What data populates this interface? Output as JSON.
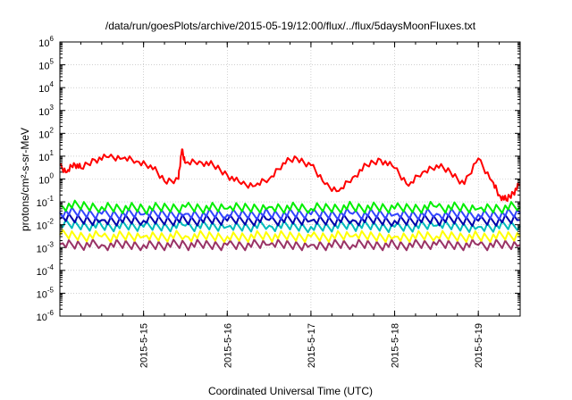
{
  "chart_data": {
    "type": "line",
    "title": "/data/run/goesPlots/archive/2015-05-19/12:00/flux/../flux/5daysMoonFluxes.txt",
    "xlabel": "Coordinated Universal Time (UTC)",
    "ylabel": "protons/cm²-s-sr-MeV",
    "x_axis": {
      "start": "2015-05-14T00:00",
      "end": "2015-05-19T12:00",
      "unit": "day"
    },
    "y_scale": "log",
    "ylim": [
      1e-06,
      1000000.0
    ],
    "grid": true,
    "legend": "none",
    "x_ticks": [
      "2015-5-15",
      "2015-5-16",
      "2015-5-17",
      "2015-5-18",
      "2015-5-19"
    ],
    "y_ticks": [
      {
        "base": "10",
        "exp": "-6",
        "value": 1e-06
      },
      {
        "base": "10",
        "exp": "-5",
        "value": 1e-05
      },
      {
        "base": "10",
        "exp": "-4",
        "value": 0.0001
      },
      {
        "base": "10",
        "exp": "-3",
        "value": 0.001
      },
      {
        "base": "10",
        "exp": "-2",
        "value": 0.01
      },
      {
        "base": "10",
        "exp": "-1",
        "value": 0.1
      },
      {
        "base": "10",
        "exp": "0",
        "value": 1.0
      },
      {
        "base": "10",
        "exp": "1",
        "value": 10.0
      },
      {
        "base": "10",
        "exp": "2",
        "value": 100.0
      },
      {
        "base": "10",
        "exp": "3",
        "value": 1000.0
      },
      {
        "base": "10",
        "exp": "4",
        "value": 10000.0
      },
      {
        "base": "10",
        "exp": "5",
        "value": 100000.0
      },
      {
        "base": "10",
        "exp": "6",
        "value": 1000000.0
      }
    ],
    "series": [
      {
        "color": "#ff0000",
        "x": [
          "2015-05-14T00:00",
          "2015-05-14T02:00",
          "2015-05-14T04:00",
          "2015-05-14T06:00",
          "2015-05-14T10:00",
          "2015-05-14T14:00",
          "2015-05-14T18:00",
          "2015-05-14T22:00",
          "2015-05-15T02:00",
          "2015-05-15T06:00",
          "2015-05-15T10:00",
          "2015-05-15T11:00",
          "2015-05-15T12:00",
          "2015-05-15T16:00",
          "2015-05-15T20:00",
          "2015-05-16T00:00",
          "2015-05-16T04:00",
          "2015-05-16T08:00",
          "2015-05-16T12:00",
          "2015-05-16T16:00",
          "2015-05-16T20:00",
          "2015-05-17T00:00",
          "2015-05-17T04:00",
          "2015-05-17T08:00",
          "2015-05-17T12:00",
          "2015-05-17T16:00",
          "2015-05-17T20:00",
          "2015-05-18T00:00",
          "2015-05-18T04:00",
          "2015-05-18T08:00",
          "2015-05-18T12:00",
          "2015-05-18T16:00",
          "2015-05-18T20:00",
          "2015-05-19T00:00",
          "2015-05-19T04:00",
          "2015-05-19T06:00",
          "2015-05-19T08:00",
          "2015-05-19T10:00",
          "2015-05-19T12:00"
        ],
        "values": [
          4,
          2,
          5,
          3,
          7,
          9,
          8,
          6,
          4,
          0.8,
          1,
          20,
          5,
          6,
          4,
          1.5,
          0.6,
          0.5,
          1,
          5,
          8,
          4,
          0.6,
          0.3,
          1.2,
          4,
          7,
          3,
          0.5,
          2,
          4,
          2,
          0.6,
          8,
          0.8,
          0.2,
          0.12,
          0.25,
          0.6
        ]
      },
      {
        "color": "#00ee00",
        "x": [
          "2015-05-14T00:00",
          "2015-05-14T12:00",
          "2015-05-15T00:00",
          "2015-05-15T12:00",
          "2015-05-16T00:00",
          "2015-05-16T12:00",
          "2015-05-17T00:00",
          "2015-05-17T12:00",
          "2015-05-18T00:00",
          "2015-05-18T12:00",
          "2015-05-19T00:00",
          "2015-05-19T12:00"
        ],
        "values": [
          0.07,
          0.06,
          0.05,
          0.06,
          0.05,
          0.06,
          0.05,
          0.06,
          0.05,
          0.06,
          0.05,
          0.06
        ]
      },
      {
        "color": "#3344ff",
        "x": [
          "2015-05-14T00:00",
          "2015-05-14T12:00",
          "2015-05-15T00:00",
          "2015-05-15T12:00",
          "2015-05-16T00:00",
          "2015-05-16T12:00",
          "2015-05-17T00:00",
          "2015-05-17T12:00",
          "2015-05-18T00:00",
          "2015-05-18T12:00",
          "2015-05-19T00:00",
          "2015-05-19T12:00"
        ],
        "values": [
          0.035,
          0.03,
          0.028,
          0.03,
          0.027,
          0.03,
          0.028,
          0.03,
          0.027,
          0.03,
          0.028,
          0.03
        ]
      },
      {
        "color": "#0000aa",
        "x": [
          "2015-05-14T00:00",
          "2015-05-14T12:00",
          "2015-05-15T00:00",
          "2015-05-15T12:00",
          "2015-05-16T00:00",
          "2015-05-16T12:00",
          "2015-05-17T00:00",
          "2015-05-17T12:00",
          "2015-05-18T00:00",
          "2015-05-18T12:00",
          "2015-05-19T00:00",
          "2015-05-19T12:00"
        ],
        "values": [
          0.018,
          0.016,
          0.015,
          0.016,
          0.015,
          0.016,
          0.015,
          0.016,
          0.015,
          0.016,
          0.015,
          0.016
        ]
      },
      {
        "color": "#00bbbb",
        "x": [
          "2015-05-14T00:00",
          "2015-05-14T12:00",
          "2015-05-15T00:00",
          "2015-05-15T12:00",
          "2015-05-16T00:00",
          "2015-05-16T12:00",
          "2015-05-17T00:00",
          "2015-05-17T12:00",
          "2015-05-18T00:00",
          "2015-05-18T12:00",
          "2015-05-19T00:00",
          "2015-05-19T12:00"
        ],
        "values": [
          0.01,
          0.009,
          0.008,
          0.009,
          0.008,
          0.009,
          0.008,
          0.009,
          0.008,
          0.009,
          0.008,
          0.009
        ]
      },
      {
        "color": "#ffff00",
        "x": [
          "2015-05-14T00:00",
          "2015-05-14T12:00",
          "2015-05-15T00:00",
          "2015-05-15T12:00",
          "2015-05-16T00:00",
          "2015-05-16T12:00",
          "2015-05-17T00:00",
          "2015-05-17T12:00",
          "2015-05-18T00:00",
          "2015-05-18T12:00",
          "2015-05-19T00:00",
          "2015-05-19T12:00"
        ],
        "values": [
          0.0035,
          0.003,
          0.003,
          0.0032,
          0.003,
          0.0031,
          0.003,
          0.0031,
          0.003,
          0.0031,
          0.003,
          0.0031
        ]
      },
      {
        "color": "#993366",
        "x": [
          "2015-05-14T00:00",
          "2015-05-14T12:00",
          "2015-05-15T00:00",
          "2015-05-15T12:00",
          "2015-05-16T00:00",
          "2015-05-16T12:00",
          "2015-05-17T00:00",
          "2015-05-17T12:00",
          "2015-05-18T00:00",
          "2015-05-18T12:00",
          "2015-05-19T00:00",
          "2015-05-19T12:00"
        ],
        "values": [
          0.0014,
          0.0013,
          0.0013,
          0.0013,
          0.0013,
          0.0013,
          0.0013,
          0.0013,
          0.0013,
          0.0013,
          0.0013,
          0.0013
        ]
      }
    ]
  }
}
